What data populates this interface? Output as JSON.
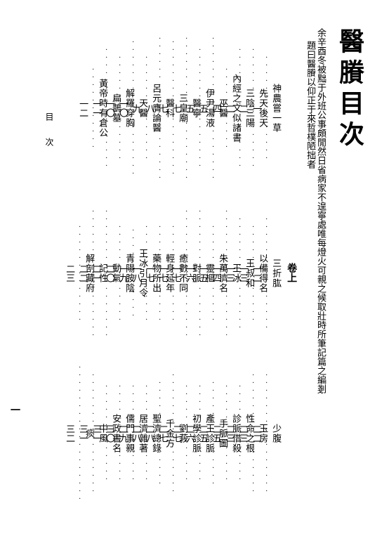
{
  "title": "醫賸目次",
  "preface": [
    "余辛酉冬被黜于外班公事頗閒然日省病家不遑寧處唯每燈火可親之候取壯時所筆記篇之編剗",
    "題曰醫賸以仰正于來哲樸陋拙者"
  ],
  "section_head": "卷上",
  "running_head": "目　次",
  "page_marker": "一",
  "columns": [
    {
      "entries": [
        {
          "t": "神農嘗一草",
          "p": "一"
        },
        {
          "t": "三折肱",
          "p": "一二"
        },
        {
          "t": "少腹",
          "p": "二二"
        }
      ]
    },
    {
      "entries": [
        {
          "t": "先天後天",
          "p": "二"
        },
        {
          "t": "以備得名",
          "p": "一三"
        },
        {
          "t": "玉房",
          "p": "二三"
        }
      ]
    },
    {
      "entries": [
        {
          "t": "三陰三陽",
          "p": "二"
        },
        {
          "t": "王叔和",
          "p": "一三"
        },
        {
          "t": "性命之根",
          "p": "二三"
        }
      ]
    },
    {
      "entries": [
        {
          "t": "內經之文似諸書",
          "p": "四"
        },
        {
          "t": "王冰",
          "p": "一四"
        },
        {
          "t": "診脈借殺",
          "p": "二五"
        }
      ]
    },
    {
      "entries": [
        {
          "t": "巫醫",
          "p": "五"
        },
        {
          "t": "朱萬濟名",
          "p": "一五"
        },
        {
          "t": "手脈圖",
          "p": "二五"
        }
      ]
    },
    {
      "entries": [
        {
          "t": "伊尹湯液",
          "p": "五"
        },
        {
          "t": "靈樞",
          "p": "一六"
        },
        {
          "t": "產王診脈",
          "p": "二六"
        }
      ]
    },
    {
      "entries": [
        {
          "t": "醫寧",
          "p": "七"
        },
        {
          "t": "對脈",
          "p": "一七"
        },
        {
          "t": "初學診脈",
          "p": "二七"
        }
      ]
    },
    {
      "entries": [
        {
          "t": "三皇廟",
          "p": "七"
        },
        {
          "t": "癒數不同",
          "p": "一七"
        },
        {
          "t": "劉莪",
          "p": "二七"
        }
      ]
    },
    {
      "entries": [
        {
          "t": "醫科",
          "p": "八"
        },
        {
          "t": "輕身延年",
          "p": "一七"
        },
        {
          "t": "千金方",
          "p": "二八"
        }
      ]
    },
    {
      "entries": [
        {
          "t": "呂元膺論醫",
          "p": "九"
        },
        {
          "t": "藥物所出",
          "p": "一八"
        },
        {
          "t": "聖濟總錄",
          "p": "二八"
        }
      ]
    },
    {
      "entries": [
        {
          "t": "天醫",
          "p": "一〇"
        },
        {
          "t": "王冰引月令",
          "p": "一九"
        },
        {
          "t": "居濟雜著",
          "p": "二九"
        }
      ]
    },
    {
      "entries": [
        {
          "t": "解羅穿胸",
          "p": "一〇"
        },
        {
          "t": "青陽胺陰",
          "p": "二〇"
        },
        {
          "t": "儒門事親",
          "p": "三〇"
        }
      ]
    },
    {
      "entries": [
        {
          "t": "扁鵲墓",
          "p": "一一"
        },
        {
          "t": "動氣",
          "p": "二一"
        },
        {
          "t": "安政書名",
          "p": "三一"
        }
      ]
    },
    {
      "entries": [
        {
          "t": "黃帝時有倉公",
          "p": "一二"
        },
        {
          "t": "記性",
          "p": "二二"
        },
        {
          "t": "中風",
          "p": "三一"
        }
      ]
    },
    {
      "entries": [
        {
          "t": "",
          "p": ""
        },
        {
          "t": "解剖藏府",
          "p": "二三"
        },
        {
          "t": "痰",
          "p": "三二"
        }
      ]
    }
  ]
}
